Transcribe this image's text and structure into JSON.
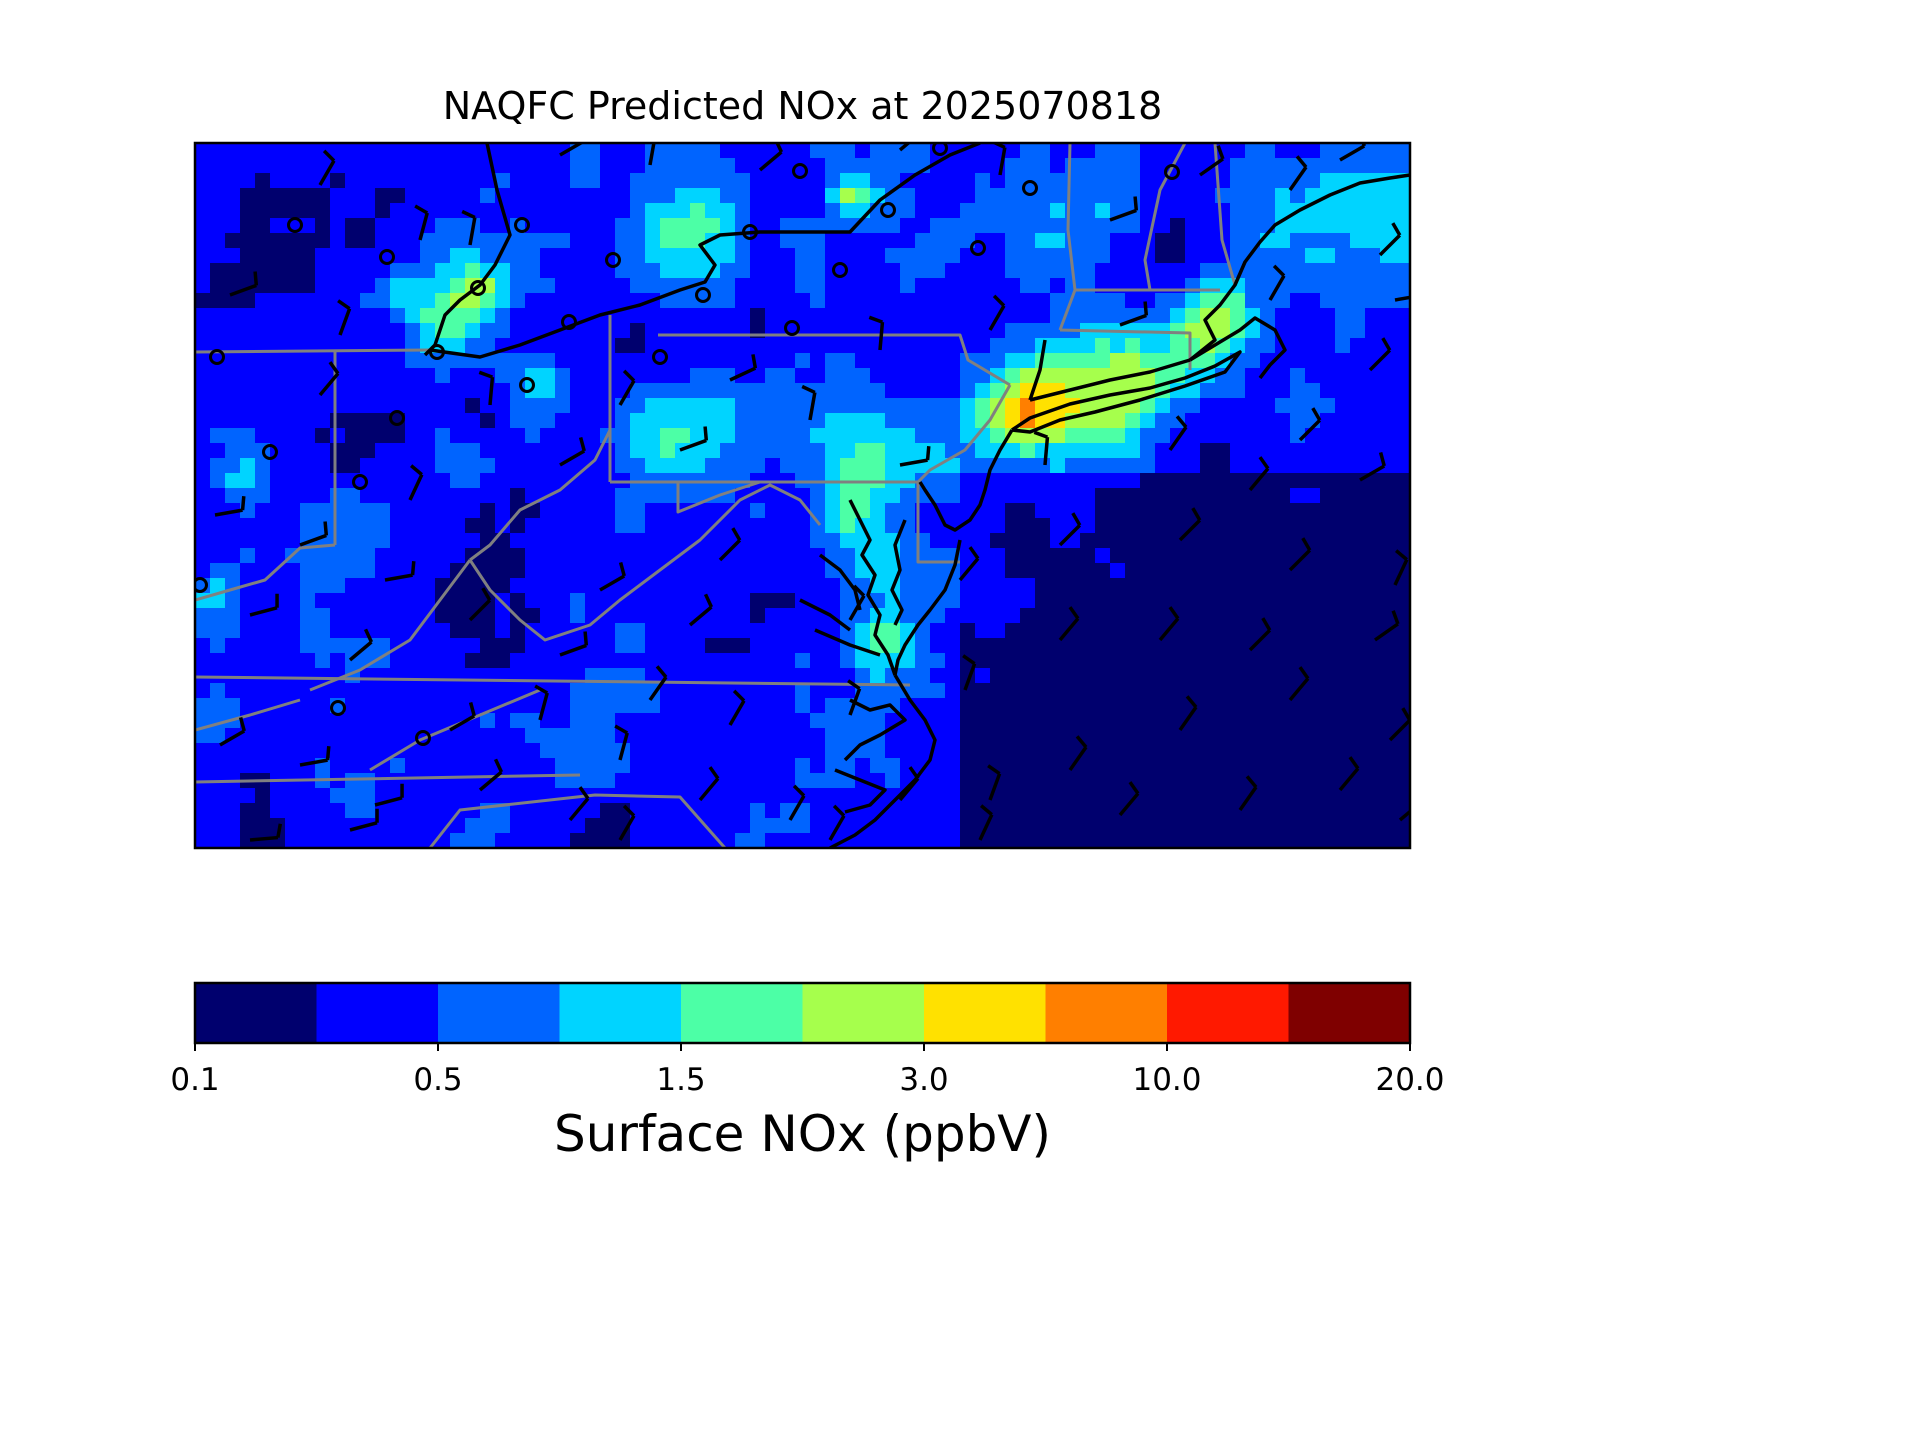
{
  "title": "NAQFC Predicted NOx at 2025070818",
  "colorbar": {
    "label": "Surface NOx (ppbV)",
    "tick_labels": [
      "0.1",
      "0.5",
      "1.5",
      "3.0",
      "10.0",
      "20.0"
    ],
    "colors": [
      "#00006e",
      "#0000ff",
      "#0064ff",
      "#00d4ff",
      "#4cffa6",
      "#a6ff4c",
      "#ffe100",
      "#ff7f00",
      "#ff1900",
      "#7f0000"
    ]
  },
  "map": {
    "field": "surface NOx concentration",
    "overlays": [
      "state-boundaries",
      "coastlines",
      "wind-barbs",
      "calm-wind-circles"
    ]
  }
}
